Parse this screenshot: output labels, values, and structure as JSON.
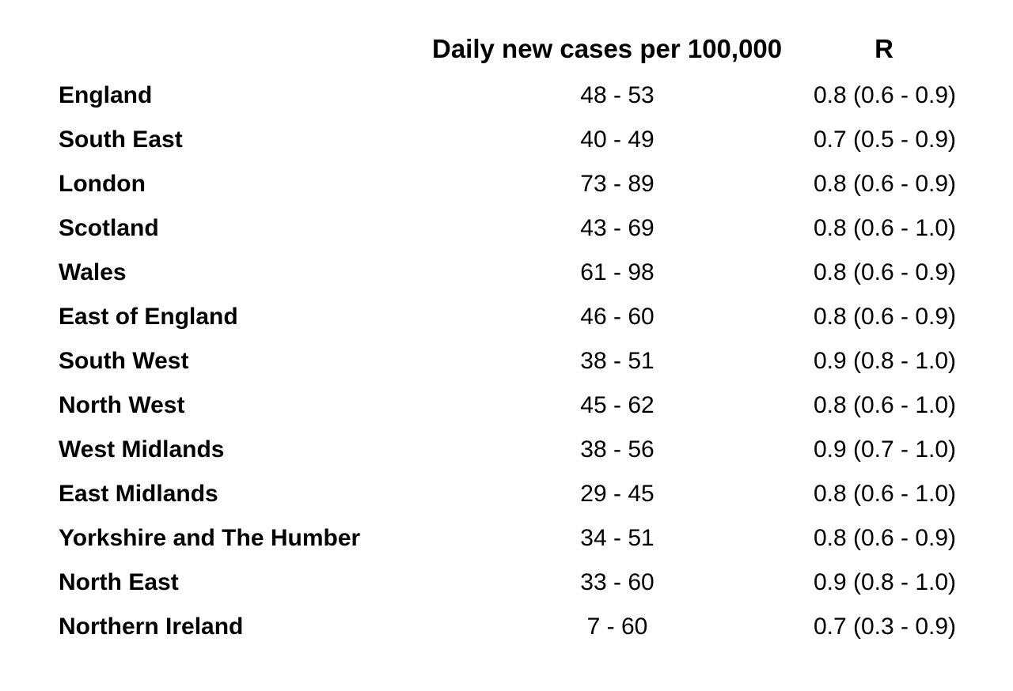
{
  "headers": {
    "region": "",
    "cases": "Daily new cases per 100,000",
    "r": "R"
  },
  "rows": [
    {
      "region": "England",
      "cases": "48 - 53",
      "r": "0.8 (0.6 - 0.9)"
    },
    {
      "region": "South East",
      "cases": "40 - 49",
      "r": "0.7 (0.5 - 0.9)"
    },
    {
      "region": "London",
      "cases": "73 - 89",
      "r": "0.8 (0.6 - 0.9)"
    },
    {
      "region": "Scotland",
      "cases": "43 - 69",
      "r": "0.8 (0.6 - 1.0)"
    },
    {
      "region": "Wales",
      "cases": "61 - 98",
      "r": "0.8 (0.6 - 0.9)"
    },
    {
      "region": "East of England",
      "cases": "46 - 60",
      "r": "0.8 (0.6 - 0.9)"
    },
    {
      "region": "South West",
      "cases": "38 - 51",
      "r": "0.9 (0.8 - 1.0)"
    },
    {
      "region": "North West",
      "cases": "45 - 62",
      "r": "0.8 (0.6 - 1.0)"
    },
    {
      "region": "West Midlands",
      "cases": "38 - 56",
      "r": "0.9 (0.7 - 1.0)"
    },
    {
      "region": "East Midlands",
      "cases": "29 - 45",
      "r": "0.8 (0.6 - 1.0)"
    },
    {
      "region": "Yorkshire and The Humber",
      "cases": "34 - 51",
      "r": "0.8 (0.6 - 0.9)"
    },
    {
      "region": "North East",
      "cases": "33 - 60",
      "r": "0.9 (0.8 - 1.0)"
    },
    {
      "region": "Northern Ireland",
      "cases": "7 - 60",
      "r": "0.7 (0.3 - 0.9)"
    }
  ]
}
